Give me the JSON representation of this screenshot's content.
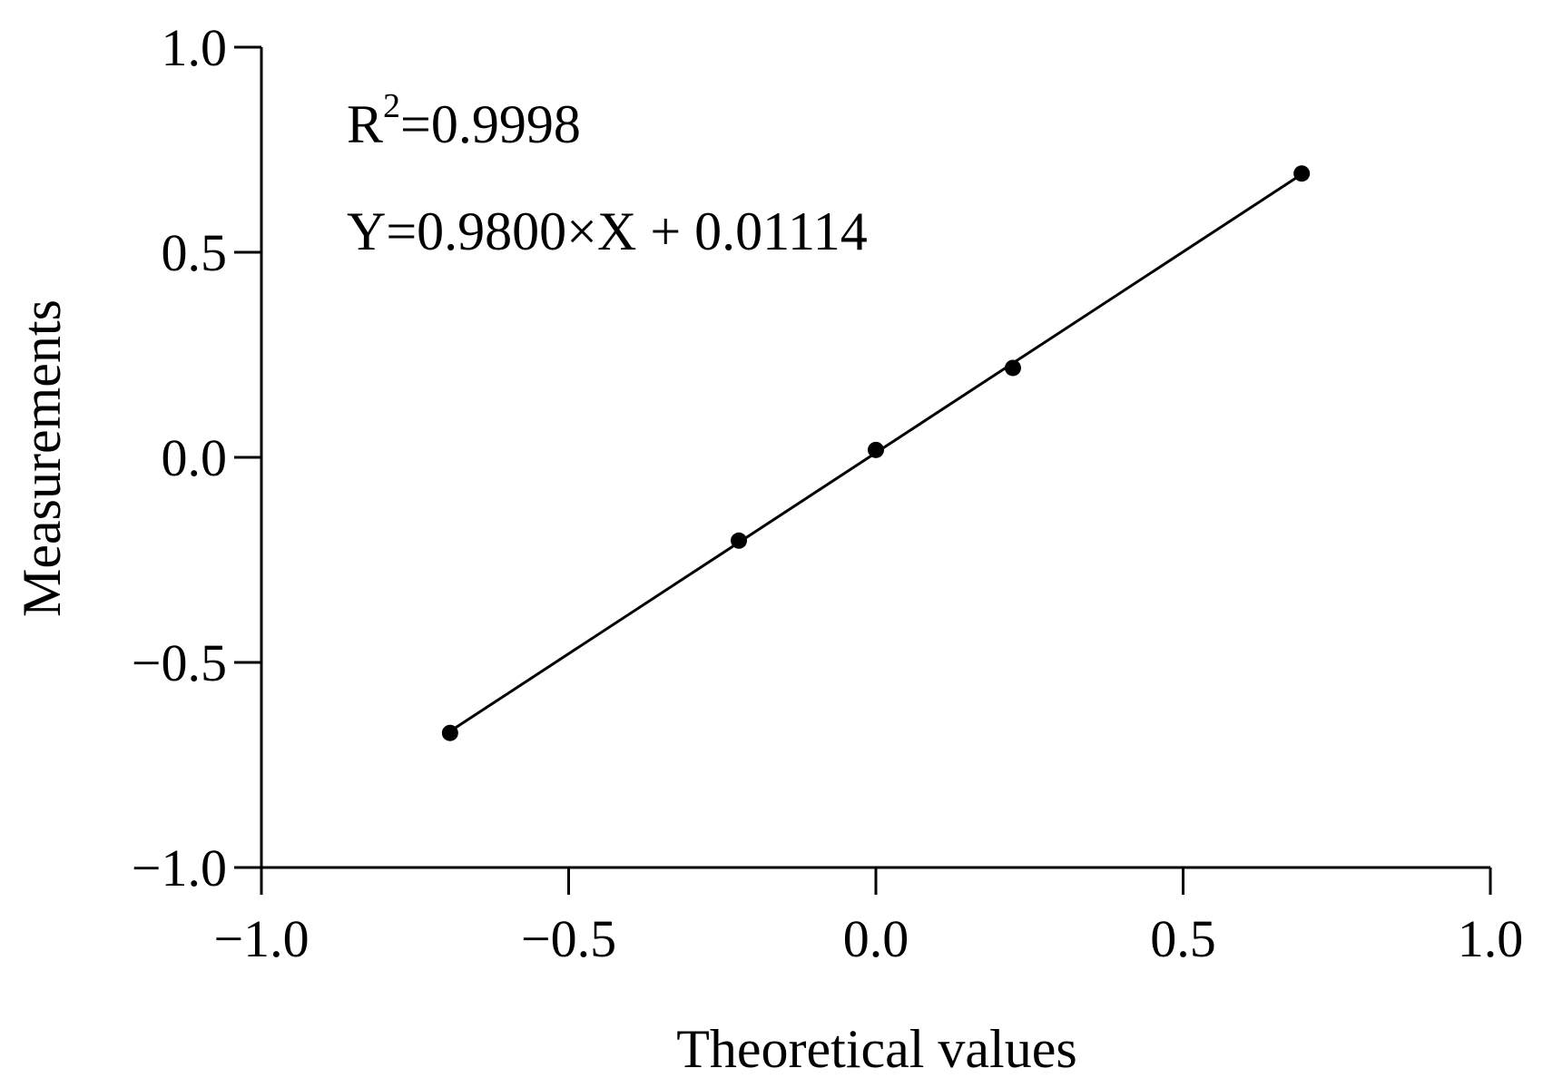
{
  "chart_data": {
    "type": "scatter",
    "xlabel": "Theoretical values",
    "ylabel": "Measurements",
    "xlim": [
      -1.0,
      1.0
    ],
    "ylim": [
      -1.0,
      1.0
    ],
    "x_ticks": [
      -1.0,
      -0.5,
      0.0,
      0.5,
      1.0
    ],
    "y_ticks": [
      -1.0,
      -0.5,
      0.0,
      0.5,
      1.0
    ],
    "x_tick_labels": [
      "−1.0",
      "−0.5",
      "0.0",
      "0.5",
      "1.0"
    ],
    "y_tick_labels": [
      "−1.0",
      "−0.5",
      "0.0",
      "0.5",
      "1.0"
    ],
    "grid": false,
    "series": [
      {
        "points": [
          {
            "x": -0.693,
            "y": -0.672
          },
          {
            "x": -0.223,
            "y": -0.203
          },
          {
            "x": 0.0,
            "y": 0.018
          },
          {
            "x": 0.223,
            "y": 0.218
          },
          {
            "x": 0.693,
            "y": 0.692
          }
        ]
      }
    ],
    "fit_line": {
      "slope": 0.98,
      "intercept": 0.01114,
      "x_range": [
        -0.693,
        0.693
      ]
    },
    "annotations": {
      "r2_prefix": "R",
      "r2_exponent": "2",
      "r2_value": "=0.9998",
      "equation": "Y=0.9800×X + 0.01114"
    },
    "colors": {
      "ink": "#000000",
      "background": "#ffffff"
    }
  }
}
